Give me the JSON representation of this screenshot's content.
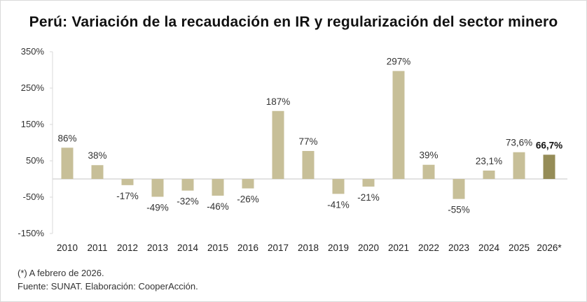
{
  "chart_data": {
    "type": "bar",
    "title": "Perú: Variación de la recaudación en IR y regularización del sector minero",
    "xlabel": "",
    "ylabel": "",
    "ylim": [
      -150,
      350
    ],
    "yticks": [
      350,
      250,
      150,
      50,
      -50,
      -150
    ],
    "ytick_labels": [
      "350%",
      "250%",
      "150%",
      "50%",
      "-50%",
      "-150%"
    ],
    "grid": false,
    "categories": [
      "2010",
      "2011",
      "2012",
      "2013",
      "2014",
      "2015",
      "2016",
      "2017",
      "2018",
      "2019",
      "2020",
      "2021",
      "2022",
      "2023",
      "2024",
      "2025",
      "2026*"
    ],
    "values": [
      86,
      38,
      -17,
      -49,
      -32,
      -46,
      -26,
      187,
      77,
      -41,
      -21,
      297,
      39,
      -55,
      23.1,
      73.6,
      66.7
    ],
    "data_labels": [
      "86%",
      "38%",
      "-17%",
      "-49%",
      "-32%",
      "-46%",
      "-26%",
      "187%",
      "77%",
      "-41%",
      "-21%",
      "297%",
      "39%",
      "-55%",
      "23,1%",
      "73,6%",
      "66,7%"
    ],
    "highlight_index": 16,
    "colors": {
      "bar": "#c7bf98",
      "highlight": "#958c57",
      "axis": "#d9d9d9"
    }
  },
  "footnotes": {
    "note": "(*) A febrero de 2026.",
    "source": "Fuente: SUNAT. Elaboración: CooperAcción."
  }
}
